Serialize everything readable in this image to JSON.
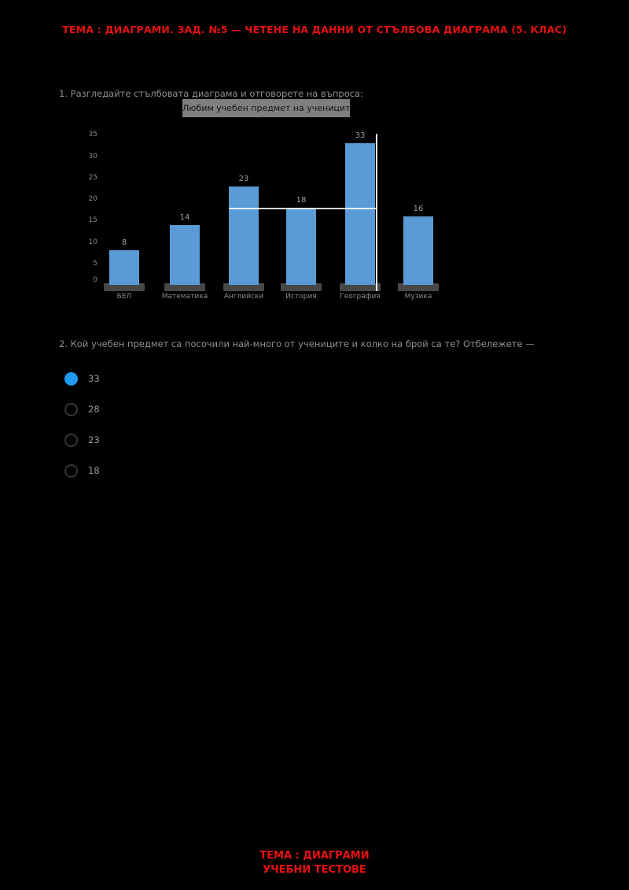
{
  "colors": {
    "page_bg": "#000000",
    "accent_red": "#e81111",
    "bar_blue": "#5b9bd5",
    "radio_blue": "#1e9bf0",
    "grey_text": "#8f8f8f",
    "title_box_bg": "#7f7f7f"
  },
  "header": {
    "title": "ТЕМА : ДИАГРАМИ. ЗАД. №5 — ЧЕТЕНЕ НА ДАННИ ОТ СТЪЛБОВА ДИАГРАМА (5. КЛАС)"
  },
  "question1": {
    "text": "1. Разгледайте стълбовата диаграма и отговорете на въпроса:"
  },
  "chart_data": {
    "type": "bar",
    "title": "Любим учебен предмет на учениците",
    "categories": [
      "БЕЛ",
      "Математика",
      "Английски",
      "История",
      "География",
      "Музика"
    ],
    "values": [
      8,
      14,
      23,
      18,
      33,
      16
    ],
    "yticks": [
      0,
      5,
      10,
      15,
      20,
      25,
      30,
      35
    ],
    "ylim": [
      0,
      35
    ],
    "xlabel": "",
    "ylabel": "",
    "grid": false,
    "legend": false,
    "highlight": {
      "bar_index": 4,
      "line_value": 18
    }
  },
  "question2": {
    "text": "2. Кой учебен предмет са посочили най-много от учениците и колко на брой са те? Отбележете —",
    "options": [
      "33",
      "28",
      "23",
      "18"
    ],
    "selected_index": 0
  },
  "footer": {
    "line1": "ТЕМА : ДИАГРАМИ",
    "line2": "УЧЕБНИ ТЕСТОВЕ"
  }
}
